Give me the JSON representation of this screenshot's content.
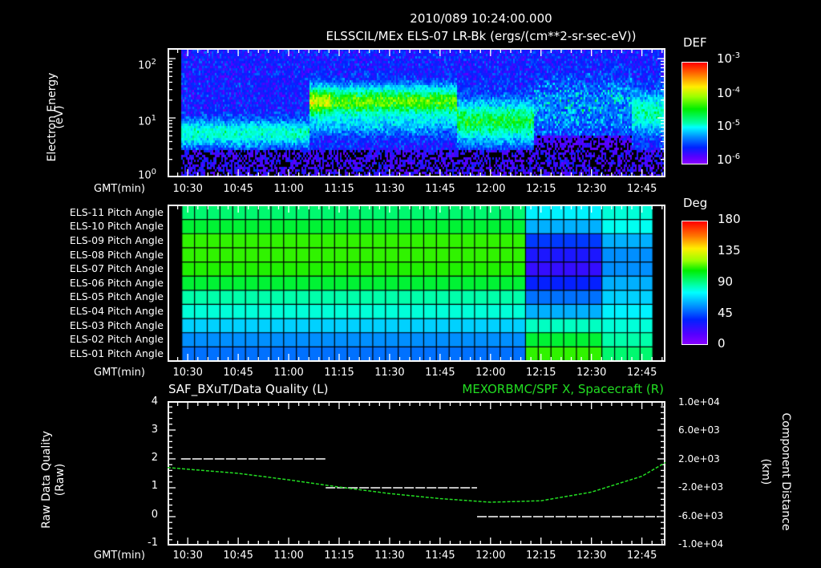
{
  "header": {
    "timestamp": "2010/089 10:24:00.000",
    "subtitle": "ELSSCIL/MEx ELS-07 LR-Bk  (ergs/(cm**2-sr-sec-eV))"
  },
  "colors": {
    "background": "#000000",
    "foreground": "#ffffff",
    "position_line": "#22dd22",
    "quality_line": "#ffffff"
  },
  "time_axis": {
    "label": "GMT(min)",
    "ticks": [
      "10:30",
      "10:45",
      "11:00",
      "11:15",
      "11:30",
      "11:45",
      "12:00",
      "12:15",
      "12:30",
      "12:45"
    ]
  },
  "panel1": {
    "ylabel_line1": "Electron Energy",
    "ylabel_line2": "(eV)",
    "yticks": [
      "10",
      "10",
      "10"
    ],
    "yticks_exp": [
      "2",
      "1",
      "0"
    ],
    "colorbar_title": "DEF",
    "colorbar_ticks": [
      "10",
      "10",
      "10",
      "10"
    ],
    "colorbar_exps": [
      "-3",
      "-4",
      "-5",
      "-6"
    ]
  },
  "panel2": {
    "rows": [
      "ELS-11 Pitch Angle",
      "ELS-10 Pitch Angle",
      "ELS-09 Pitch Angle",
      "ELS-08 Pitch Angle",
      "ELS-07 Pitch Angle",
      "ELS-06 Pitch Angle",
      "ELS-05 Pitch Angle",
      "ELS-04 Pitch Angle",
      "ELS-03 Pitch Angle",
      "ELS-02 Pitch Angle",
      "ELS-01 Pitch Angle"
    ],
    "colorbar_title": "Deg",
    "colorbar_ticks": [
      "180",
      "135",
      "90",
      "45",
      "0"
    ]
  },
  "panel3": {
    "left_title": "SAF_BXuT/Data Quality (L)",
    "right_title": "MEXORBMC/SPF X, Spacecraft (R)",
    "ylabel_left_line1": "Raw Data Quality",
    "ylabel_left_line2": "(Raw)",
    "ylabel_right_line1": "Component Distance",
    "ylabel_right_line2": "(km)",
    "yticks_left": [
      "4",
      "3",
      "2",
      "1",
      "0",
      "-1"
    ],
    "yticks_right": [
      "1.0e+04",
      "6.0e+03",
      "2.0e+03",
      "-2.0e+03",
      "-6.0e+03",
      "-1.0e+04"
    ]
  },
  "chart_data": [
    {
      "type": "heatmap",
      "title": "ELSSCIL/MEx ELS-07 LR-Bk (ergs/(cm**2-sr-sec-eV))",
      "xlabel": "GMT(min)",
      "ylabel": "Electron Energy (eV)",
      "yscale": "log",
      "ylim": [
        1,
        150
      ],
      "x_range": [
        "10:24",
        "12:52"
      ],
      "data_start": "10:28",
      "colorbar": {
        "label": "DEF",
        "scale": "log",
        "range": [
          1e-06,
          0.001
        ]
      },
      "features": [
        {
          "time": "10:28-11:06",
          "energy_eV": "3-10",
          "level": "~1e-5 (cyan)"
        },
        {
          "time": "11:06-11:50",
          "energy_eV": "10-40",
          "level": "~1e-4 to 3e-4 (green/yellow), peak ~11:08 at ~25 eV"
        },
        {
          "time": "11:50-12:10",
          "energy_eV": "3-20",
          "level": "~3e-5 (cyan/green)"
        },
        {
          "time": "12:12-12:42",
          "energy_eV": "sparse",
          "level": "mostly <1e-6 with bursts"
        },
        {
          "time": "12:42-12:52",
          "energy_eV": "5-30",
          "level": "~1e-5"
        }
      ]
    },
    {
      "type": "heatmap",
      "title": "ELS Pitch Angle",
      "xlabel": "GMT(min)",
      "categories_y": [
        "ELS-11",
        "ELS-10",
        "ELS-09",
        "ELS-08",
        "ELS-07",
        "ELS-06",
        "ELS-05",
        "ELS-04",
        "ELS-03",
        "ELS-02",
        "ELS-01"
      ],
      "colorbar": {
        "label": "Deg",
        "range": [
          0,
          180
        ]
      },
      "segments": [
        {
          "time": "10:28-12:12",
          "values_deg": [
            95,
            100,
            110,
            110,
            108,
            100,
            90,
            80,
            65,
            55,
            50
          ]
        },
        {
          "time": "12:15-12:35",
          "values_deg": [
            70,
            60,
            40,
            30,
            25,
            35,
            50,
            60,
            85,
            100,
            110
          ]
        },
        {
          "time": "12:35-12:48",
          "values_deg": [
            80,
            75,
            60,
            55,
            55,
            60,
            65,
            70,
            80,
            90,
            95
          ]
        }
      ]
    },
    {
      "type": "line",
      "title": "SAF_BXuT/Data Quality (L) ; MEXORBMC/SPF X, Spacecraft (R)",
      "xlabel": "GMT(min)",
      "ylabel": "Raw Data Quality (Raw)",
      "ylabel_right": "Component Distance (km)",
      "ylim": [
        -1,
        4
      ],
      "ylim_right": [
        -10000,
        10000
      ],
      "series": [
        {
          "name": "Data Quality (L)",
          "x": [
            "10:28",
            "11:11",
            "11:11",
            "11:56",
            "11:56",
            "12:50"
          ],
          "values": [
            2,
            2,
            1,
            1,
            0,
            0
          ]
        },
        {
          "name": "SPF X Spacecraft (R)",
          "x": [
            "10:24",
            "10:45",
            "11:00",
            "11:15",
            "11:30",
            "11:45",
            "12:00",
            "12:15",
            "12:30",
            "12:45",
            "12:52"
          ],
          "values": [
            800,
            0,
            -900,
            -1900,
            -2800,
            -3500,
            -4000,
            -3800,
            -2600,
            -400,
            1500
          ]
        }
      ]
    }
  ]
}
